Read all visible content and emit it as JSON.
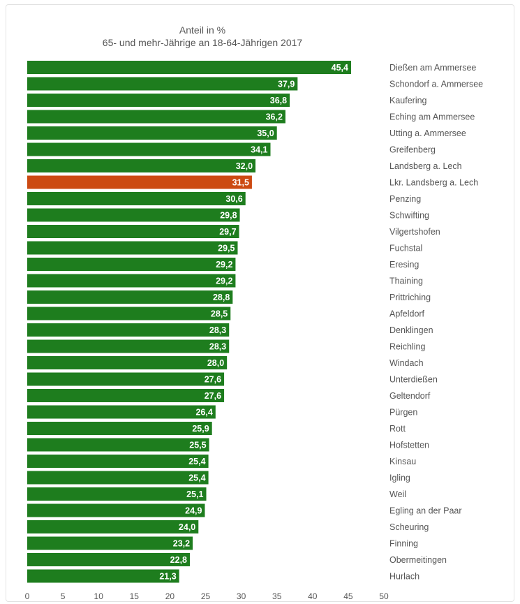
{
  "chart_data": {
    "type": "bar",
    "orientation": "horizontal",
    "title": "Anteil in %",
    "subtitle": "65- und mehr-Jährige an 18-64-Jährigen 2017",
    "categories": [
      "Dießen am Ammersee",
      "Schondorf a. Ammersee",
      "Kaufering",
      "Eching am Ammersee",
      "Utting a. Ammersee",
      "Greifenberg",
      "Landsberg a. Lech",
      "Lkr. Landsberg a. Lech",
      "Penzing",
      "Schwifting",
      "Vilgertshofen",
      "Fuchstal",
      "Eresing",
      "Thaining",
      "Prittriching",
      "Apfeldorf",
      "Denklingen",
      "Reichling",
      "Windach",
      "Unterdießen",
      "Geltendorf",
      "Pürgen",
      "Rott",
      "Hofstetten",
      "Kinsau",
      "Igling",
      "Weil",
      "Egling an der Paar",
      "Scheuring",
      "Finning",
      "Obermeitingen",
      "Hurlach"
    ],
    "values": [
      45.4,
      37.9,
      36.8,
      36.2,
      35.0,
      34.1,
      32.0,
      31.5,
      30.6,
      29.8,
      29.7,
      29.5,
      29.2,
      29.2,
      28.8,
      28.5,
      28.3,
      28.3,
      28.0,
      27.6,
      27.6,
      26.4,
      25.9,
      25.5,
      25.4,
      25.4,
      25.1,
      24.9,
      24.0,
      23.2,
      22.8,
      21.3
    ],
    "value_labels": [
      "45,4",
      "37,9",
      "36,8",
      "36,2",
      "35,0",
      "34,1",
      "32,0",
      "31,5",
      "30,6",
      "29,8",
      "29,7",
      "29,5",
      "29,2",
      "29,2",
      "28,8",
      "28,5",
      "28,3",
      "28,3",
      "28,0",
      "27,6",
      "27,6",
      "26,4",
      "25,9",
      "25,5",
      "25,4",
      "25,4",
      "25,1",
      "24,9",
      "24,0",
      "23,2",
      "22,8",
      "21,3"
    ],
    "highlight_index": 7,
    "colors": {
      "bar": "#1e7d1e",
      "highlight": "#cc4a12"
    },
    "xlim": [
      0,
      50
    ],
    "xticks": [
      "0",
      "5",
      "10",
      "15",
      "20",
      "25",
      "30",
      "35",
      "40",
      "45",
      "50"
    ],
    "grid": false,
    "legend": "none"
  }
}
